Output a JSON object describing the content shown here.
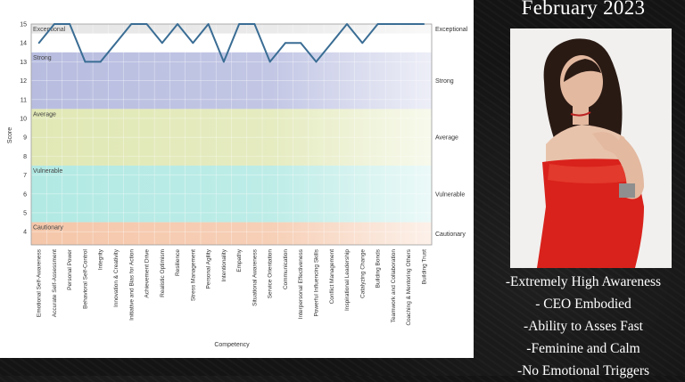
{
  "slide": {
    "title": "February 2023",
    "bullets": [
      "-Extremely High Awareness",
      "- CEO Embodied",
      "-Ability to Asses Fast",
      "-Feminine and Calm",
      "-No Emotional Triggers"
    ]
  },
  "chart_data": {
    "type": "line",
    "title": "",
    "xlabel": "Competency",
    "ylabel": "Score",
    "ylim": [
      3.3,
      15
    ],
    "yticks": [
      4,
      5,
      6,
      7,
      8,
      9,
      10,
      11,
      12,
      13,
      14,
      15
    ],
    "grid": true,
    "categories": [
      "Emotional Self-Awareness",
      "Accurate Self-Assessment",
      "Personal Power",
      "Behavioral Self-Control",
      "Integrity",
      "Innovation & Creativity",
      "Initiative and Bias for Action",
      "Achievement Drive",
      "Realistic Optimism",
      "Resilience",
      "Stress Management",
      "Personal Agility",
      "Intentionality",
      "Empathy",
      "Situational Awareness",
      "Service Orientation",
      "Communication",
      "Interpersonal Effectiveness",
      "Powerful Influencing Skills",
      "Conflict Management",
      "Inspirational Leadership",
      "Catalyzing Change",
      "Building Bonds",
      "Teamwork and Collaboration",
      "Coaching & Mentoring Others",
      "Building Trust"
    ],
    "values": [
      14,
      15,
      15,
      13,
      13,
      14,
      15,
      15,
      14,
      15,
      14,
      15,
      13,
      15,
      15,
      13,
      14,
      14,
      13,
      14,
      15,
      14,
      15,
      15,
      15,
      15
    ],
    "bands": [
      {
        "label": "Exceptional",
        "from": 14.5,
        "to": 15,
        "color": "#e6e6e6"
      },
      {
        "label": "Strong",
        "from": 10.5,
        "to": 13.5,
        "color": "#b8bde0"
      },
      {
        "label": "Average",
        "from": 7.5,
        "to": 10.5,
        "color": "#e1e8b5"
      },
      {
        "label": "Vulnerable",
        "from": 4.5,
        "to": 7.5,
        "color": "#b2e9e3"
      },
      {
        "label": "Cautionary",
        "from": 3.3,
        "to": 4.5,
        "color": "#f5c7aa"
      }
    ],
    "line_color": "#3a6d94"
  }
}
